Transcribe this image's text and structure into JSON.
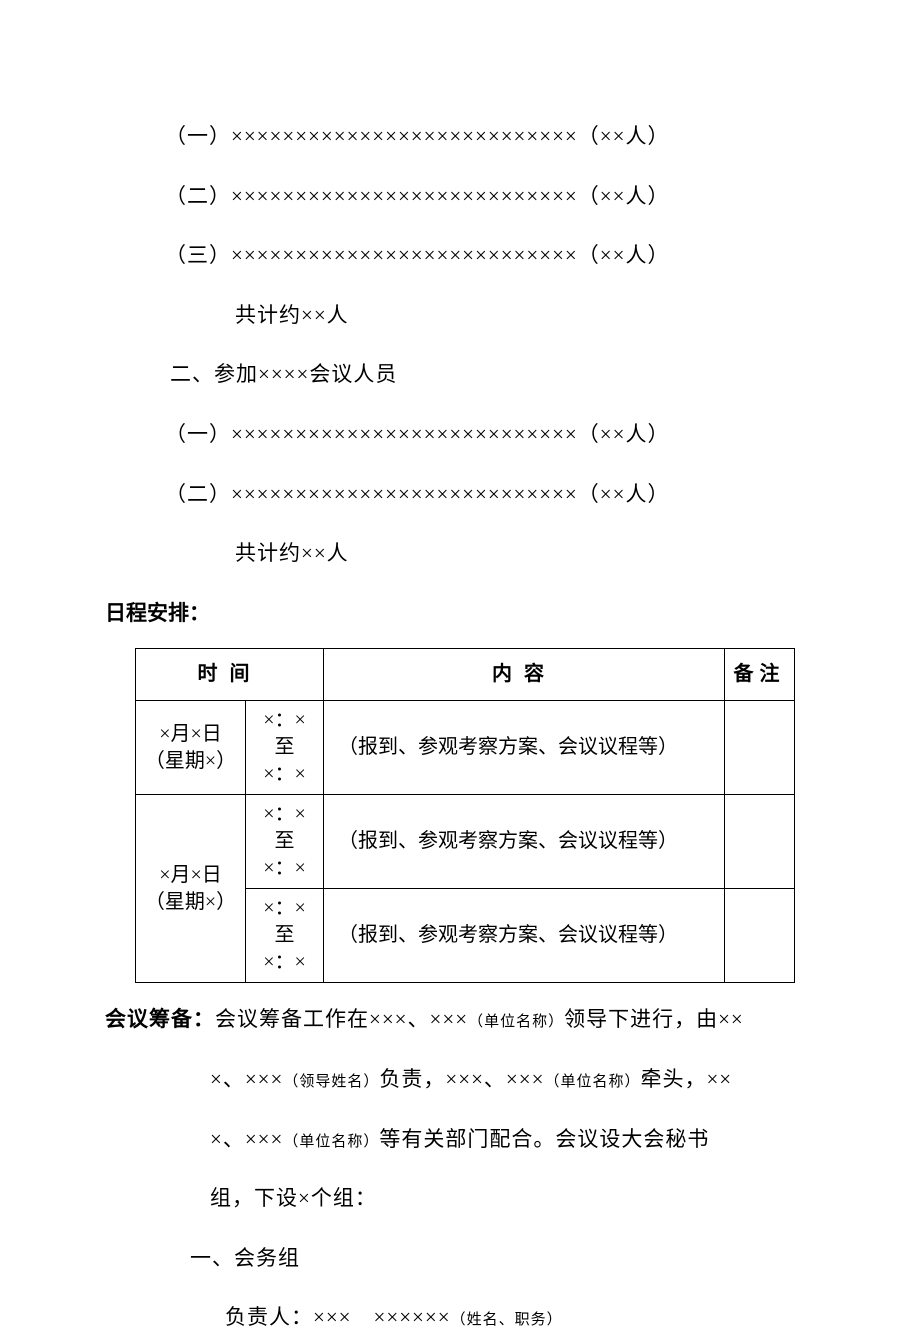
{
  "attendees_list1": {
    "items": [
      "（一）×××××××××××××××××××××××××××（××人）",
      "（二）×××××××××××××××××××××××××××（××人）",
      "（三）×××××××××××××××××××××××××××（××人）"
    ],
    "total": "共计约××人"
  },
  "section2_heading": "二、参加××××会议人员",
  "attendees_list2": {
    "items": [
      "（一）×××××××××××××××××××××××××××（××人）",
      "（二）×××××××××××××××××××××××××××（××人）"
    ],
    "total": "共计约××人"
  },
  "schedule": {
    "label": "日程安排：",
    "headers": {
      "time": "时间",
      "content": "内容",
      "note": "备注"
    },
    "rows": [
      {
        "date": "×月×日\n（星期×）",
        "time": "×：×\n至\n×：×",
        "content": "（报到、参观考察方案、会议议程等）",
        "note": "",
        "rowspan_date": 1
      }
    ],
    "group2": {
      "date": "×月×日\n（星期×）",
      "slots": [
        {
          "time": "×：×\n至\n×：×",
          "content": "（报到、参观考察方案、会议议程等）",
          "note": ""
        },
        {
          "time": "×：×\n至\n×：×",
          "content": "（报到、参观考察方案、会议议程等）",
          "note": ""
        }
      ]
    },
    "border_color": "#000000",
    "background_color": "#ffffff"
  },
  "prep": {
    "label": "会议筹备：",
    "line1_a": "会议筹备工作在×××、×××",
    "line1_note1": "（单位名称）",
    "line1_b": "领导下进行，由××",
    "line2_a": "×、×××",
    "line2_note1": "（领导姓名）",
    "line2_b": "负责，×××、×××",
    "line2_note2": "（单位名称）",
    "line2_c": "牵头，××",
    "line3_a": "×、×××",
    "line3_note1": "（单位名称）",
    "line3_b": "等有关部门配合。会议设大会秘书",
    "line4": "组，下设×个组：",
    "group_heading": "一、会务组",
    "responsible_label": "负责人：×××　××××××",
    "responsible_note": "（姓名、职务）"
  },
  "colors": {
    "text": "#000000",
    "background": "#ffffff"
  },
  "fontsize_main": 21,
  "fontsize_small": 15
}
